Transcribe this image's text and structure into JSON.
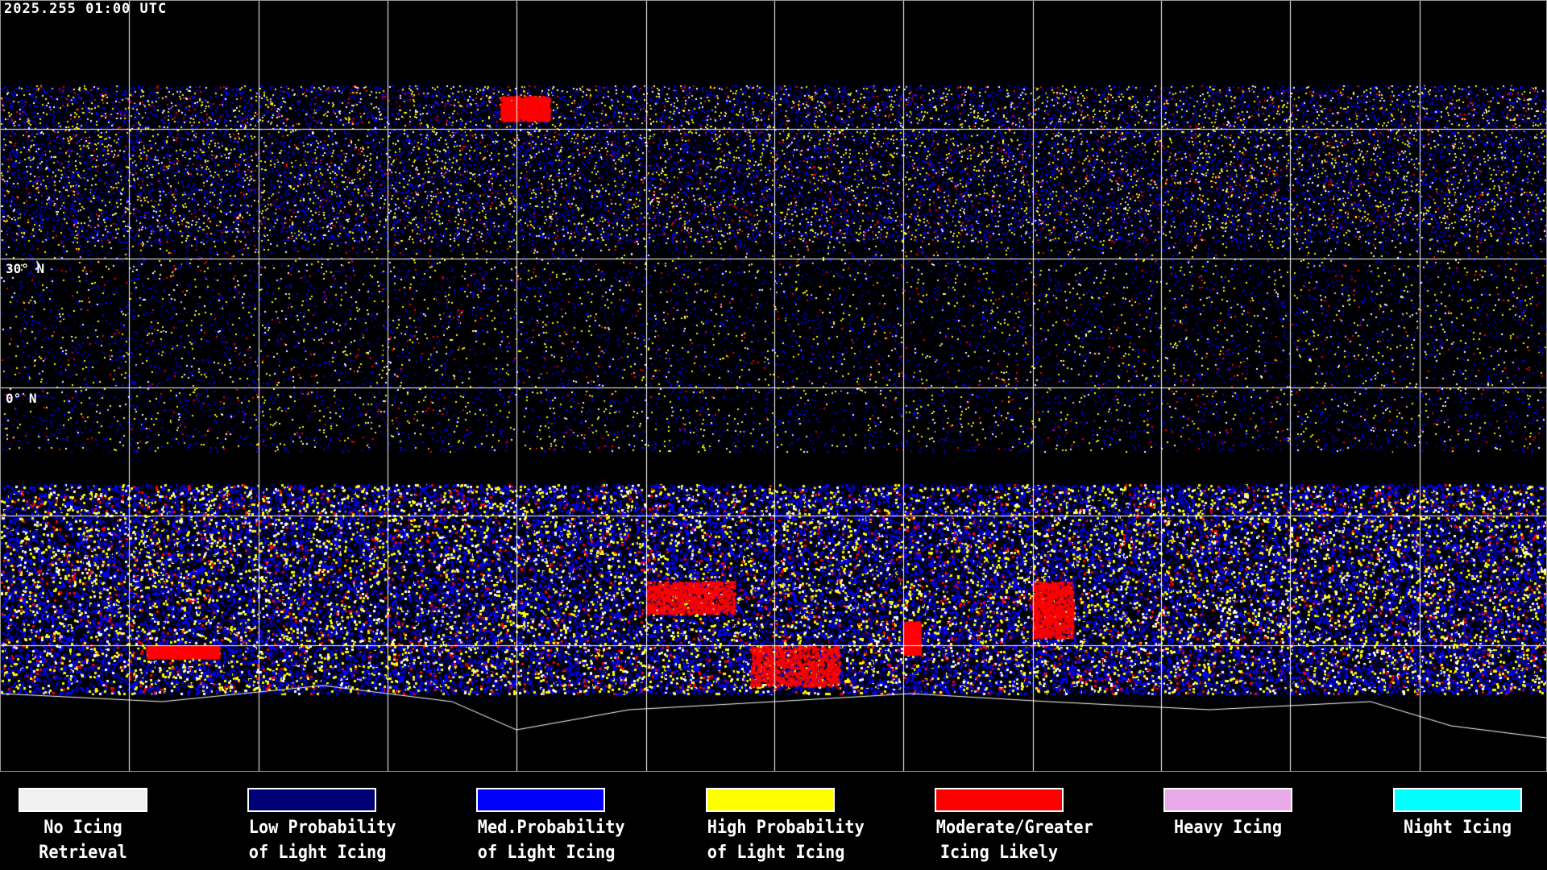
{
  "header": {
    "timestamp": "2025.255 01:00 UTC"
  },
  "map": {
    "latitude_labels": [
      "30° N",
      "0° N"
    ],
    "projection": "equirectangular",
    "gridlines": true
  },
  "legend": [
    {
      "line1": "No Icing",
      "line2": "Retrieval",
      "color": "#f0f0f0"
    },
    {
      "line1": "Low Probability",
      "line2": "of Light Icing",
      "color": "#000077"
    },
    {
      "line1": "Med.Probability",
      "line2": "of Light Icing",
      "color": "#0000ff"
    },
    {
      "line1": "High Probability",
      "line2": "of Light Icing",
      "color": "#ffff00"
    },
    {
      "line1": "Moderate/Greater",
      "line2": "Icing Likely",
      "color": "#ff0000"
    },
    {
      "line1": "Heavy Icing",
      "line2": "",
      "color": "#e8aae8"
    },
    {
      "line1": "Night Icing",
      "line2": "",
      "color": "#00ffff"
    }
  ]
}
